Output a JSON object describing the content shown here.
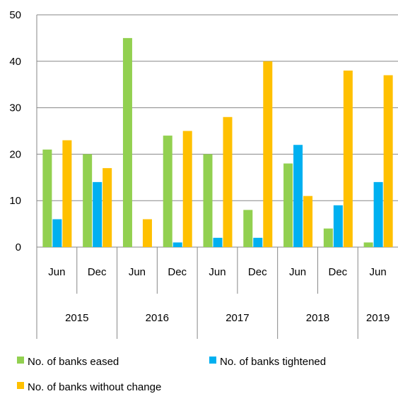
{
  "chart_data": {
    "type": "bar",
    "categories": [
      "Jun",
      "Dec",
      "Jun",
      "Dec",
      "Jun",
      "Dec",
      "Jun",
      "Dec",
      "Jun"
    ],
    "year_groups": [
      {
        "label": "2015",
        "span": 2
      },
      {
        "label": "2016",
        "span": 2
      },
      {
        "label": "2017",
        "span": 2
      },
      {
        "label": "2018",
        "span": 2
      },
      {
        "label": "2019",
        "span": 1
      }
    ],
    "series": [
      {
        "name": "No. of banks eased",
        "color": "#92D050",
        "values": [
          21,
          20,
          45,
          24,
          20,
          8,
          18,
          4,
          1
        ]
      },
      {
        "name": "No. of banks tightened",
        "color": "#00B0F0",
        "values": [
          6,
          14,
          0,
          1,
          2,
          2,
          22,
          9,
          14
        ]
      },
      {
        "name": "No. of banks without change",
        "color": "#FFC000",
        "values": [
          23,
          17,
          6,
          25,
          28,
          40,
          11,
          38,
          37
        ]
      }
    ],
    "ylim": [
      0,
      50
    ],
    "yticks": [
      0,
      10,
      20,
      30,
      40,
      50
    ],
    "grid": true,
    "legend_position": "bottom",
    "title": "",
    "xlabel": "",
    "ylabel": ""
  }
}
